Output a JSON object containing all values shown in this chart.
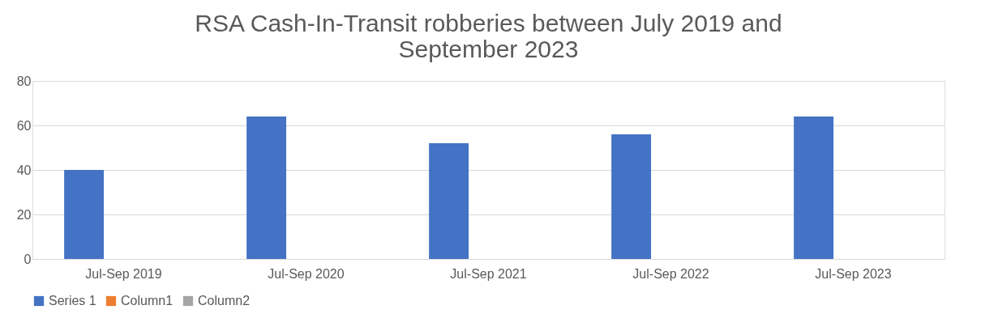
{
  "chart_data": {
    "type": "bar",
    "title": "RSA Cash-In-Transit robberies between July 2019 and September 2023",
    "categories": [
      "Jul-Sep 2019",
      "Jul-Sep 2020",
      "Jul-Sep 2021",
      "Jul-Sep 2022",
      "Jul-Sep 2023"
    ],
    "series": [
      {
        "name": "Series 1",
        "color": "#4472c4",
        "values": [
          40,
          64,
          52,
          56,
          64
        ]
      },
      {
        "name": "Column1",
        "color": "#ed7d31",
        "values": [
          null,
          null,
          null,
          null,
          null
        ]
      },
      {
        "name": "Column2",
        "color": "#a5a5a5",
        "values": [
          null,
          null,
          null,
          null,
          null
        ]
      }
    ],
    "ylim": [
      0,
      80
    ],
    "yticks": [
      0,
      20,
      40,
      60,
      80
    ],
    "grid": "y",
    "legend": "bottom"
  }
}
